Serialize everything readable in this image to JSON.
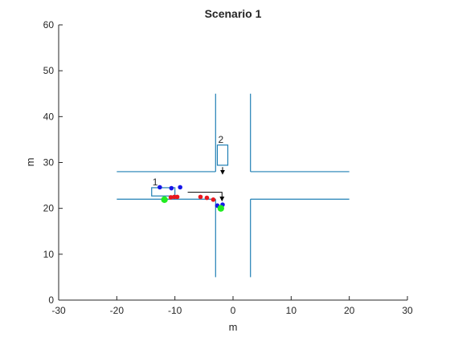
{
  "chart_data": {
    "type": "scatter",
    "title": "Scenario 1",
    "xlabel": "m",
    "ylabel": "m",
    "xlim": [
      -30,
      30
    ],
    "ylim": [
      0,
      60
    ],
    "xticks": [
      -30,
      -20,
      -10,
      0,
      10,
      20,
      30
    ],
    "yticks": [
      0,
      10,
      20,
      30,
      40,
      50,
      60
    ],
    "grid": false,
    "colors": {
      "road": "#1f7fb4",
      "red": "#e8181e",
      "blue": "#1616e8",
      "green": "#21ec21",
      "axis": "#262626",
      "arrow": "#000000"
    },
    "road_lines": [
      {
        "x": [
          -20,
          -3
        ],
        "y": [
          28,
          28
        ]
      },
      {
        "x": [
          3,
          20
        ],
        "y": [
          28,
          28
        ]
      },
      {
        "x": [
          -20,
          -3
        ],
        "y": [
          22,
          22
        ]
      },
      {
        "x": [
          3,
          20
        ],
        "y": [
          22,
          22
        ]
      },
      {
        "x": [
          -3,
          -3
        ],
        "y": [
          45,
          28
        ]
      },
      {
        "x": [
          3,
          3
        ],
        "y": [
          45,
          28
        ]
      },
      {
        "x": [
          -3,
          -3
        ],
        "y": [
          22,
          5
        ]
      },
      {
        "x": [
          3,
          3
        ],
        "y": [
          22,
          5
        ]
      }
    ],
    "vehicles": [
      {
        "label": "1",
        "x": -12,
        "y": 23.6,
        "w": 4,
        "h": 1.8
      },
      {
        "label": "2",
        "x": -1.8,
        "y": 31.6,
        "w": 1.8,
        "h": 4.4
      }
    ],
    "arrows": [
      {
        "x": [
          -1.8,
          -1.8
        ],
        "y": [
          29,
          27.5
        ]
      },
      {
        "x": [
          -7.8,
          -1.9,
          -1.9
        ],
        "y": [
          23.5,
          23.5,
          21.7
        ]
      }
    ],
    "series": [
      {
        "color": "red",
        "x": [
          -10.7,
          -10.1,
          -9.6,
          -5.6,
          -4.5,
          -3.4
        ],
        "y": [
          22.4,
          22.5,
          22.5,
          22.5,
          22.3,
          21.9
        ]
      },
      {
        "color": "blue",
        "x": [
          -12.6,
          -10.6,
          -9.1,
          -2.7,
          -1.8
        ],
        "y": [
          24.6,
          24.4,
          24.6,
          20.6,
          20.8
        ]
      },
      {
        "color": "green",
        "x": [
          -11.8,
          -2.1
        ],
        "y": [
          21.9,
          20.0
        ]
      }
    ]
  }
}
